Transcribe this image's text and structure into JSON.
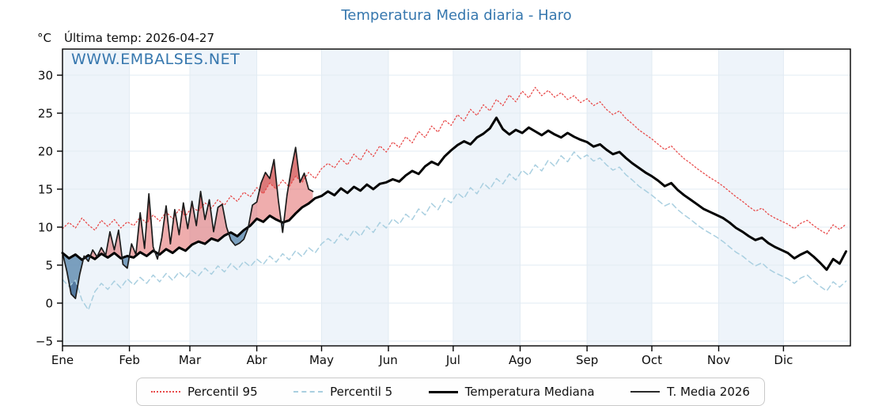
{
  "header": {
    "unit_label": "°C",
    "last_temp_label": "Última temp: 2026-04-27"
  },
  "watermark": "WWW.EMBALSES.NET",
  "legend": {
    "items": [
      {
        "key": "p95",
        "label": "Percentil 95"
      },
      {
        "key": "p5",
        "label": "Percentil 5"
      },
      {
        "key": "median",
        "label": "Temperatura Mediana"
      },
      {
        "key": "t2026",
        "label": "T. Media 2026"
      }
    ]
  },
  "colors": {
    "title_blue": "#3677ae",
    "band": "#eef4fa",
    "grid": "#e2ebf3",
    "axis": "#000000",
    "p95_red": "#e84b4b",
    "p5_blue": "#a9cfe0",
    "median_black": "#000000",
    "t2026_black": "#1c1c1c",
    "fill_warm": "rgba(223,92,92,0.5)",
    "fill_warm_extreme": "rgba(198,58,58,0.45)",
    "fill_cold": "rgba(90,134,173,0.78)",
    "fill_cold_extreme": "rgba(44,84,128,0.5)"
  },
  "chart_data": {
    "type": "line",
    "title": "Temperatura Media diaria - Haro",
    "ylabel": "°C",
    "ylim": [
      -5.6,
      33.4
    ],
    "grid": true,
    "legend_position": "bottom",
    "yticks": [
      30,
      25,
      20,
      15,
      10,
      5,
      0,
      -5
    ],
    "months": [
      "Ene",
      "Feb",
      "Mar",
      "Abr",
      "May",
      "Jun",
      "Jul",
      "Ago",
      "Sep",
      "Oct",
      "Nov",
      "Dic"
    ],
    "month_start_days": [
      1,
      32,
      60,
      91,
      121,
      152,
      182,
      213,
      244,
      274,
      305,
      335
    ],
    "days_in_year": 365,
    "series": [
      {
        "key": "p95",
        "name": "Percentil 95",
        "style": "dotted",
        "width": 1.3,
        "color": "#e84b4b",
        "start_day": 1,
        "step": 3,
        "values": [
          9.8,
          10.6,
          9.9,
          11.2,
          10.3,
          9.6,
          10.9,
          10.1,
          11.0,
          9.9,
          10.7,
          10.2,
          11.3,
          10.5,
          11.6,
          10.8,
          12.0,
          11.1,
          12.3,
          11.5,
          12.6,
          12.1,
          13.2,
          12.5,
          13.6,
          12.9,
          14.1,
          13.4,
          14.6,
          14.0,
          15.2,
          14.4,
          15.8,
          15.0,
          16.2,
          15.3,
          16.7,
          15.9,
          17.2,
          16.4,
          17.7,
          18.4,
          17.8,
          19.0,
          18.2,
          19.6,
          18.8,
          20.2,
          19.3,
          20.7,
          19.9,
          21.2,
          20.5,
          21.9,
          21.1,
          22.6,
          21.8,
          23.3,
          22.5,
          24.1,
          23.4,
          24.8,
          24.0,
          25.5,
          24.7,
          26.1,
          25.3,
          26.8,
          26.0,
          27.4,
          26.5,
          27.9,
          27.0,
          28.4,
          27.3,
          28.0,
          27.1,
          27.7,
          26.8,
          27.3,
          26.4,
          26.9,
          26.0,
          26.5,
          25.5,
          24.8,
          25.3,
          24.3,
          23.6,
          22.8,
          22.2,
          21.6,
          20.9,
          20.2,
          20.7,
          19.8,
          19.0,
          18.4,
          17.7,
          17.1,
          16.5,
          16.0,
          15.4,
          14.7,
          14.0,
          13.4,
          12.7,
          12.1,
          12.5,
          11.7,
          11.2,
          10.8,
          10.4,
          9.8,
          10.5,
          10.9,
          10.2,
          9.6,
          9.1,
          10.3,
          9.7,
          10.4
        ]
      },
      {
        "key": "p5",
        "name": "Percentil 5",
        "style": "dashed",
        "width": 1.5,
        "color": "#a9cfe0",
        "start_day": 1,
        "step": 3,
        "values": [
          3.1,
          2.2,
          3.0,
          0.4,
          -0.9,
          1.5,
          2.6,
          1.8,
          2.9,
          2.0,
          3.2,
          2.4,
          3.4,
          2.6,
          3.7,
          2.8,
          3.9,
          3.0,
          4.1,
          3.3,
          4.3,
          3.6,
          4.6,
          3.8,
          4.9,
          4.1,
          5.2,
          4.4,
          5.5,
          4.8,
          5.8,
          5.1,
          6.2,
          5.4,
          6.5,
          5.7,
          6.9,
          6.1,
          7.3,
          6.6,
          7.8,
          8.5,
          7.9,
          9.1,
          8.3,
          9.6,
          8.8,
          10.1,
          9.3,
          10.6,
          9.9,
          11.1,
          10.4,
          11.7,
          11.0,
          12.4,
          11.6,
          13.1,
          12.3,
          13.8,
          13.2,
          14.5,
          13.8,
          15.2,
          14.4,
          15.8,
          15.0,
          16.4,
          15.7,
          17.0,
          16.2,
          17.5,
          16.8,
          18.2,
          17.4,
          18.8,
          18.0,
          19.4,
          18.6,
          19.9,
          19.0,
          19.5,
          18.7,
          19.1,
          18.2,
          17.5,
          17.9,
          16.9,
          16.2,
          15.4,
          14.8,
          14.2,
          13.5,
          12.8,
          13.2,
          12.3,
          11.6,
          11.0,
          10.3,
          9.7,
          9.2,
          8.7,
          8.1,
          7.4,
          6.7,
          6.2,
          5.5,
          4.9,
          5.3,
          4.5,
          4.0,
          3.6,
          3.2,
          2.6,
          3.3,
          3.7,
          2.9,
          2.2,
          1.6,
          2.8,
          2.1,
          2.9
        ]
      },
      {
        "key": "median",
        "name": "Temperatura Mediana",
        "style": "solid",
        "width": 3,
        "color": "#000000",
        "start_day": 1,
        "step": 3,
        "values": [
          6.6,
          5.9,
          6.4,
          5.7,
          6.3,
          5.8,
          6.5,
          6.0,
          6.6,
          5.9,
          6.2,
          6.0,
          6.7,
          6.2,
          6.9,
          6.4,
          7.1,
          6.6,
          7.3,
          6.9,
          7.7,
          8.1,
          7.8,
          8.5,
          8.2,
          8.9,
          9.3,
          8.8,
          9.6,
          10.2,
          11.1,
          10.7,
          11.5,
          11.0,
          10.6,
          10.9,
          11.8,
          12.6,
          13.1,
          13.8,
          14.1,
          14.7,
          14.2,
          15.1,
          14.5,
          15.3,
          14.8,
          15.6,
          15.0,
          15.7,
          15.9,
          16.3,
          16.0,
          16.8,
          17.4,
          17.0,
          18.0,
          18.6,
          18.2,
          19.3,
          20.1,
          20.8,
          21.3,
          20.9,
          21.8,
          22.3,
          23.0,
          24.4,
          22.9,
          22.2,
          22.8,
          22.4,
          23.1,
          22.6,
          22.1,
          22.7,
          22.2,
          21.8,
          22.4,
          21.9,
          21.5,
          21.2,
          20.6,
          20.9,
          20.2,
          19.6,
          19.9,
          19.1,
          18.4,
          17.8,
          17.2,
          16.7,
          16.1,
          15.4,
          15.8,
          14.9,
          14.2,
          13.6,
          13.0,
          12.4,
          12.0,
          11.6,
          11.2,
          10.6,
          9.9,
          9.4,
          8.8,
          8.3,
          8.6,
          7.9,
          7.4,
          7.0,
          6.6,
          5.9,
          6.4,
          6.8,
          6.1,
          5.3,
          4.4,
          5.8,
          5.2,
          6.8
        ]
      },
      {
        "key": "t2026",
        "name": "T. Media 2026",
        "style": "solid",
        "width": 1.7,
        "color": "#1c1c1c",
        "start_day": 1,
        "step": 2,
        "last_date": "2026-04-27",
        "values": [
          6.6,
          4.2,
          1.2,
          0.6,
          3.8,
          6.2,
          5.5,
          7.0,
          6.1,
          7.3,
          6.3,
          9.4,
          7.0,
          9.6,
          5.1,
          4.6,
          7.8,
          6.4,
          11.9,
          7.2,
          14.4,
          7.4,
          5.8,
          8.6,
          12.8,
          7.8,
          12.3,
          9.0,
          13.2,
          9.8,
          13.4,
          10.2,
          14.7,
          11.0,
          13.6,
          9.4,
          12.6,
          13.0,
          10.0,
          8.3,
          7.6,
          7.9,
          8.4,
          9.9,
          12.9,
          13.3,
          15.8,
          17.2,
          16.4,
          18.9,
          13.5,
          9.3,
          14.2,
          17.6,
          20.5,
          15.9,
          17.1,
          15.0,
          14.7
        ]
      }
    ],
    "fills": [
      {
        "name": "warmer-than-median",
        "between": [
          "t2026",
          "median"
        ],
        "where": "above",
        "color": "rgba(223,92,92,0.5)"
      },
      {
        "name": "above-percentil-95",
        "between": [
          "t2026",
          "p95"
        ],
        "where": "above",
        "color": "rgba(198,58,58,0.45)"
      },
      {
        "name": "colder-than-median",
        "between": [
          "t2026",
          "median"
        ],
        "where": "below",
        "color": "rgba(90,134,173,0.78)"
      },
      {
        "name": "below-percentil-5",
        "between": [
          "t2026",
          "p5"
        ],
        "where": "below",
        "color": "rgba(44,84,128,0.5)"
      }
    ]
  }
}
